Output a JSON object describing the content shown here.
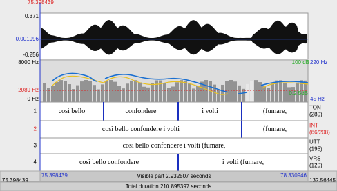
{
  "header": {
    "cursor_time": "75.398439"
  },
  "waveform": {
    "max": "0.371",
    "cursor_value": "0.001996",
    "min": "-0.256"
  },
  "spectrogram": {
    "freq_max": "8000 Hz",
    "freq_cursor": "2089 Hz",
    "freq_min": "0 Hz",
    "intensity_max": "100 dB",
    "intensity_min": "0.2 5dB",
    "pitch_max": "220 Hz",
    "pitch_min": "45 Hz"
  },
  "tiers": [
    {
      "number": "1",
      "name": "TON",
      "count": "(280)",
      "intervals": [
        "così bello",
        "confondere",
        "i volti",
        "(fumare,"
      ]
    },
    {
      "number": "2",
      "name": "INT",
      "count": "(66/208)",
      "intervals": [
        "così bello confondere i volti",
        "(fumare,"
      ]
    },
    {
      "number": "3",
      "name": "UTT",
      "count": "(195)",
      "intervals": [
        "così bello confondere i volti (fumare,"
      ]
    },
    {
      "number": "4",
      "name": "VRS",
      "count": "(120)",
      "intervals": [
        "così bello confondere",
        "i volti (fumare,"
      ]
    }
  ],
  "footer": {
    "window_start": "75.398439",
    "visible_start": "75.398439",
    "visible_part": "Visible part 2.932507 seconds",
    "visible_end": "78.330946",
    "window_end": "132.56445",
    "total_duration": "Total duration 210.895397 seconds"
  }
}
